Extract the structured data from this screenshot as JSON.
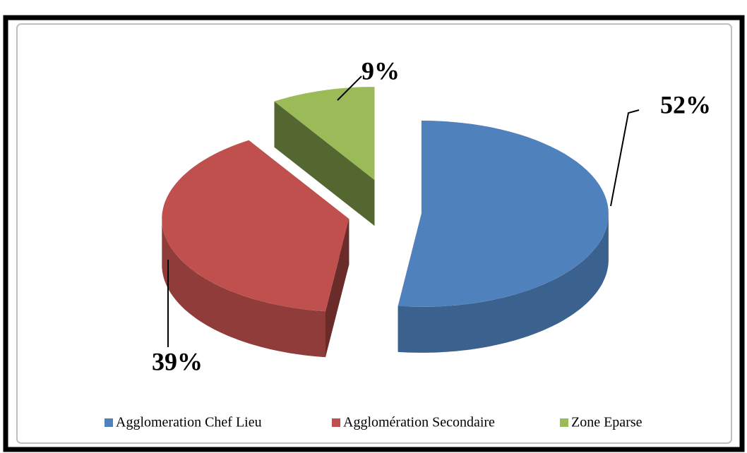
{
  "chart_data": {
    "type": "pie",
    "categories": [
      "Agglomeration Chef Lieu",
      "Agglomération Secondaire",
      "Zone Eparse"
    ],
    "values": [
      52,
      39,
      9
    ],
    "value_labels": [
      "52%",
      "39%",
      "9%"
    ],
    "colors": [
      "#4f81bd",
      "#c0504d",
      "#9bbb59"
    ],
    "legend": "bottom"
  }
}
